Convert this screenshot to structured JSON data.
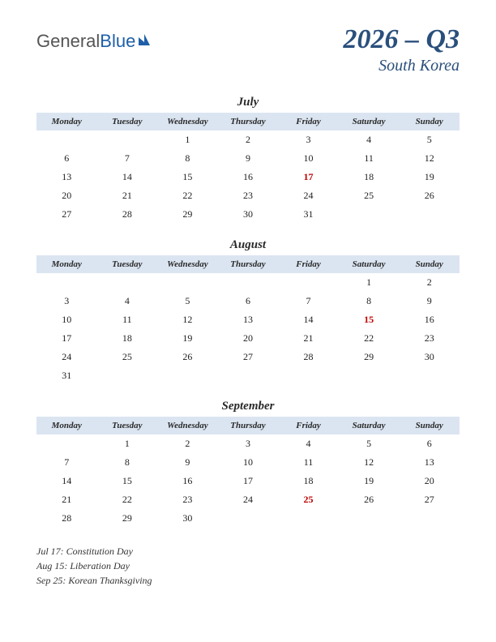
{
  "logo": {
    "part1": "General",
    "part2": "Blue"
  },
  "title": "2026 – Q3",
  "country": "South Korea",
  "day_headers": [
    "Monday",
    "Tuesday",
    "Wednesday",
    "Thursday",
    "Friday",
    "Saturday",
    "Sunday"
  ],
  "colors": {
    "header_bg": "#dbe5f1",
    "title_color": "#2a4f7c",
    "holiday_color": "#c00000",
    "text_color": "#222222"
  },
  "months": [
    {
      "name": "July",
      "weeks": [
        [
          "",
          "",
          "1",
          "2",
          "3",
          "4",
          "5"
        ],
        [
          "6",
          "7",
          "8",
          "9",
          "10",
          "11",
          "12"
        ],
        [
          "13",
          "14",
          "15",
          "16",
          "17",
          "18",
          "19"
        ],
        [
          "20",
          "21",
          "22",
          "23",
          "24",
          "25",
          "26"
        ],
        [
          "27",
          "28",
          "29",
          "30",
          "31",
          "",
          ""
        ]
      ],
      "holidays": [
        "17"
      ]
    },
    {
      "name": "August",
      "weeks": [
        [
          "",
          "",
          "",
          "",
          "",
          "1",
          "2"
        ],
        [
          "3",
          "4",
          "5",
          "6",
          "7",
          "8",
          "9"
        ],
        [
          "10",
          "11",
          "12",
          "13",
          "14",
          "15",
          "16"
        ],
        [
          "17",
          "18",
          "19",
          "20",
          "21",
          "22",
          "23"
        ],
        [
          "24",
          "25",
          "26",
          "27",
          "28",
          "29",
          "30"
        ],
        [
          "31",
          "",
          "",
          "",
          "",
          "",
          ""
        ]
      ],
      "holidays": [
        "15"
      ]
    },
    {
      "name": "September",
      "weeks": [
        [
          "",
          "1",
          "2",
          "3",
          "4",
          "5",
          "6"
        ],
        [
          "7",
          "8",
          "9",
          "10",
          "11",
          "12",
          "13"
        ],
        [
          "14",
          "15",
          "16",
          "17",
          "18",
          "19",
          "20"
        ],
        [
          "21",
          "22",
          "23",
          "24",
          "25",
          "26",
          "27"
        ],
        [
          "28",
          "29",
          "30",
          "",
          "",
          "",
          ""
        ]
      ],
      "holidays": [
        "25"
      ]
    }
  ],
  "holiday_list": [
    "Jul 17: Constitution Day",
    "Aug 15: Liberation Day",
    "Sep 25: Korean Thanksgiving"
  ]
}
